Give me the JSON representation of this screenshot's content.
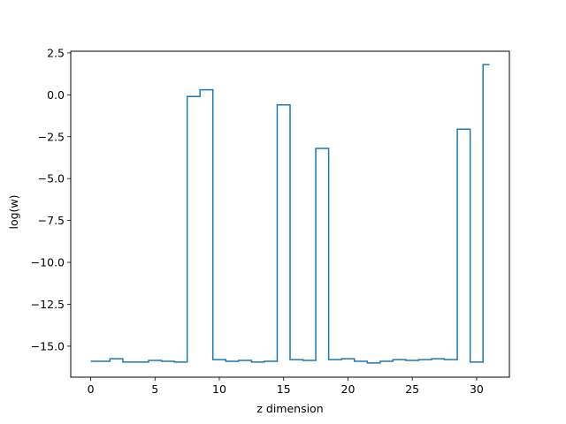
{
  "chart_data": {
    "type": "line",
    "drawstyle": "steps-mid",
    "title": "",
    "xlabel": "z dimension",
    "ylabel": "log(w)",
    "xlim": [
      -1.55,
      32.55
    ],
    "ylim": [
      -16.85,
      2.6
    ],
    "xticks": [
      0,
      5,
      10,
      15,
      20,
      25,
      30
    ],
    "xtick_labels": [
      "0",
      "5",
      "10",
      "15",
      "20",
      "25",
      "30"
    ],
    "yticks": [
      2.5,
      0.0,
      -2.5,
      -5.0,
      -7.5,
      -10.0,
      -12.5,
      -15.0
    ],
    "ytick_labels": [
      "2.5",
      "0.0",
      "−2.5",
      "−5.0",
      "−7.5",
      "−10.0",
      "−12.5",
      "−15.0"
    ],
    "grid": false,
    "series": [
      {
        "color": "#1f77b4",
        "x": [
          0,
          1,
          2,
          3,
          4,
          5,
          6,
          7,
          8,
          9,
          10,
          11,
          12,
          13,
          14,
          15,
          16,
          17,
          18,
          19,
          20,
          21,
          22,
          23,
          24,
          25,
          26,
          27,
          28,
          29,
          30,
          31
        ],
        "y": [
          -15.9,
          -15.9,
          -15.75,
          -15.95,
          -15.95,
          -15.85,
          -15.9,
          -15.95,
          -0.1,
          0.3,
          -15.8,
          -15.9,
          -15.85,
          -15.95,
          -15.9,
          -0.6,
          -15.8,
          -15.85,
          -3.2,
          -15.8,
          -15.75,
          -15.9,
          -16.0,
          -15.9,
          -15.8,
          -15.85,
          -15.8,
          -15.75,
          -15.8,
          -2.05,
          -15.95,
          1.8
        ]
      }
    ]
  }
}
